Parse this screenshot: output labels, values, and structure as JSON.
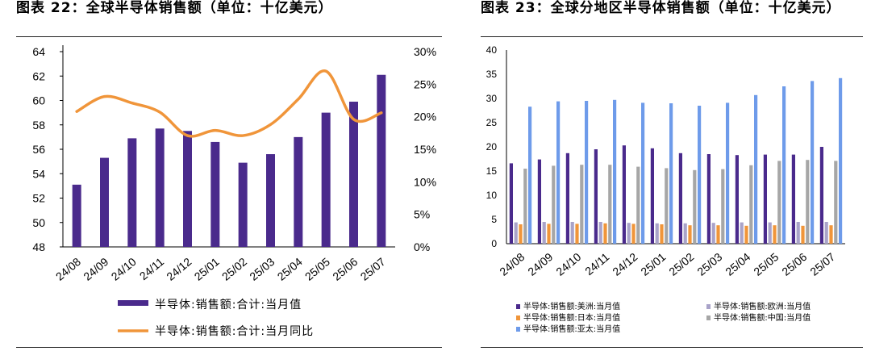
{
  "chart_data": [
    {
      "title": "图表 22：全球半导体销售额（单位：十亿美元）",
      "type": "bar+line",
      "categories": [
        "24/08",
        "24/09",
        "24/10",
        "24/11",
        "24/12",
        "25/01",
        "25/02",
        "25/03",
        "25/04",
        "25/05",
        "25/06",
        "25/07"
      ],
      "y_ticks": [
        "64",
        "62",
        "60",
        "58",
        "56",
        "54",
        "52",
        "50",
        "48"
      ],
      "y2_ticks": [
        "30%",
        "25%",
        "20%",
        "15%",
        "10%",
        "5%",
        "0%"
      ],
      "ylim": [
        48,
        64
      ],
      "y2lim": [
        0,
        30
      ],
      "series": [
        {
          "name": "半导体:销售额:合计:当月值",
          "kind": "bar",
          "axis": "left",
          "color": "#4a2a8c",
          "values": [
            53.1,
            55.3,
            56.9,
            57.7,
            57.5,
            56.6,
            54.9,
            55.6,
            57.0,
            59.0,
            59.9,
            62.1
          ]
        },
        {
          "name": "半导体:销售额:合计:当月同比",
          "kind": "line",
          "axis": "right",
          "color": "#f0953a",
          "values": [
            20.8,
            23.1,
            22.1,
            20.7,
            17.1,
            17.9,
            17.1,
            18.8,
            22.7,
            27.0,
            19.6,
            20.6
          ]
        }
      ]
    },
    {
      "title": "图表 23：全球分地区半导体销售额（单位：十亿美元）",
      "type": "bar",
      "categories": [
        "24/08",
        "24/09",
        "24/10",
        "24/11",
        "24/12",
        "25/01",
        "25/02",
        "25/03",
        "25/04",
        "25/05",
        "25/06",
        "25/07"
      ],
      "y_ticks": [
        "40",
        "35",
        "30",
        "25",
        "20",
        "15",
        "10",
        "5",
        "0"
      ],
      "ylim": [
        0,
        40
      ],
      "series": [
        {
          "name": "半导体:销售额:美洲:当月值",
          "color": "#4a2a8c",
          "values": [
            16.6,
            17.4,
            18.7,
            19.5,
            20.3,
            19.7,
            18.7,
            18.5,
            18.3,
            18.4,
            18.4,
            20.0
          ]
        },
        {
          "name": "半导体:销售额:欧洲:当月值",
          "color": "#a9a3c9",
          "values": [
            4.4,
            4.5,
            4.5,
            4.5,
            4.3,
            4.2,
            4.2,
            4.3,
            4.4,
            4.4,
            4.5,
            4.5
          ]
        },
        {
          "name": "半导体:销售额:日本:当月值",
          "color": "#f0953a",
          "values": [
            4.0,
            4.1,
            4.1,
            4.2,
            4.1,
            4.0,
            3.8,
            3.8,
            3.7,
            3.8,
            3.7,
            3.8
          ]
        },
        {
          "name": "半导体:销售额:中国:当月值",
          "color": "#a6a6a6",
          "values": [
            15.5,
            16.1,
            16.3,
            16.3,
            15.9,
            15.6,
            15.2,
            15.4,
            16.2,
            17.1,
            17.3,
            17.1
          ]
        },
        {
          "name": "半导体:销售额:亚太:当月值",
          "color": "#6e9bea",
          "values": [
            28.3,
            29.4,
            29.5,
            29.7,
            29.1,
            29.0,
            28.5,
            29.1,
            30.7,
            32.5,
            33.6,
            34.2
          ]
        }
      ]
    }
  ]
}
